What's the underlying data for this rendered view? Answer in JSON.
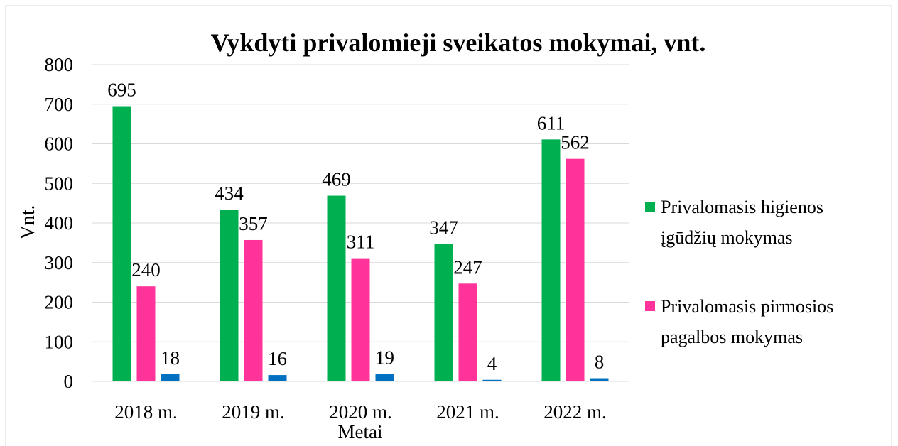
{
  "chart_data": {
    "type": "bar",
    "title": "Vykdyti privalomieji sveikatos mokymai, vnt.",
    "ylabel": "Vnt.",
    "xlabel": "Metai",
    "categories": [
      "2018 m.",
      "2019 m.",
      "2020 m.",
      "2021 m.",
      "2022 m."
    ],
    "series": [
      {
        "name": "Privalomasis higienos įgūdžių mokymas",
        "color": "#00b050",
        "values": [
          695,
          434,
          469,
          347,
          611
        ]
      },
      {
        "name": "Privalomasis pirmosios pagalbos mokymas",
        "color": "#ff3399",
        "values": [
          240,
          357,
          311,
          247,
          562
        ]
      },
      {
        "color": "#0070c0",
        "values": [
          18,
          16,
          19,
          4,
          8
        ]
      }
    ],
    "ylim": [
      0,
      800
    ],
    "yticks": [
      0,
      100,
      200,
      300,
      400,
      500,
      600,
      700,
      800
    ],
    "grid": true,
    "legend": "right"
  }
}
